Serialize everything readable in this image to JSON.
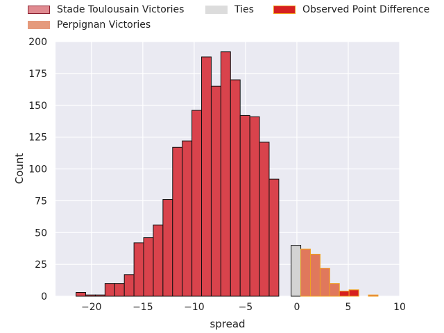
{
  "chart_data": {
    "type": "bar",
    "title": "",
    "xlabel": "spread",
    "ylabel": "Count",
    "xlim": [
      -23.5,
      10
    ],
    "ylim": [
      0,
      200
    ],
    "xticks": [
      -20,
      -15,
      -10,
      -5,
      0,
      5,
      10
    ],
    "xtick_labels": [
      "−20",
      "−15",
      "−10",
      "−5",
      "0",
      "5",
      "10"
    ],
    "yticks": [
      0,
      25,
      50,
      75,
      100,
      125,
      150,
      175,
      200
    ],
    "ytick_labels": [
      "0",
      "25",
      "50",
      "75",
      "100",
      "125",
      "150",
      "175",
      "200"
    ],
    "grid": true,
    "legend_placement": "top",
    "colors": {
      "background": "#eaeaf2",
      "grid": "#ffffff",
      "toulousain": "#d9434c",
      "perpignan": "#e0785c",
      "ties": "#d3d3d3",
      "observed_fill": "#d62020",
      "observed_edge": "#f0a020"
    },
    "legend": [
      {
        "label": "Stade Toulousain Victories",
        "key": "toulousain"
      },
      {
        "label": "Ties",
        "key": "ties"
      },
      {
        "label": "Observed Point Difference",
        "key": "observed"
      },
      {
        "label": "Perpignan Victories",
        "key": "perpignan"
      }
    ],
    "bin_width": 0.94,
    "series": [
      {
        "name": "Stade Toulousain Victories",
        "key": "toulousain",
        "bins": [
          {
            "x": -21.5,
            "count": 3
          },
          {
            "x": -20.56,
            "count": 1
          },
          {
            "x": -19.62,
            "count": 1
          },
          {
            "x": -18.68,
            "count": 10
          },
          {
            "x": -17.74,
            "count": 10
          },
          {
            "x": -16.8,
            "count": 17
          },
          {
            "x": -15.86,
            "count": 42
          },
          {
            "x": -14.92,
            "count": 46
          },
          {
            "x": -13.98,
            "count": 56
          },
          {
            "x": -13.04,
            "count": 76
          },
          {
            "x": -12.1,
            "count": 117
          },
          {
            "x": -11.16,
            "count": 122
          },
          {
            "x": -10.22,
            "count": 146
          },
          {
            "x": -9.28,
            "count": 188
          },
          {
            "x": -8.34,
            "count": 165
          },
          {
            "x": -7.4,
            "count": 192
          },
          {
            "x": -6.46,
            "count": 170
          },
          {
            "x": -5.52,
            "count": 142
          },
          {
            "x": -4.58,
            "count": 141
          },
          {
            "x": -3.64,
            "count": 121
          },
          {
            "x": -2.7,
            "count": 92
          }
        ]
      },
      {
        "name": "Ties",
        "key": "ties",
        "bins": [
          {
            "x": -0.56,
            "count": 40
          }
        ]
      },
      {
        "name": "Perpignan Victories",
        "key": "perpignan",
        "bins": [
          {
            "x": 0.38,
            "count": 37
          },
          {
            "x": 1.32,
            "count": 33
          },
          {
            "x": 2.26,
            "count": 22
          },
          {
            "x": 3.2,
            "count": 10
          },
          {
            "x": 4.14,
            "count": 4
          },
          {
            "x": 5.08,
            "count": 5
          },
          {
            "x": 6.96,
            "count": 1
          }
        ]
      },
      {
        "name": "Observed Point Difference",
        "key": "observed",
        "bins": [
          {
            "x": 4.14,
            "count": 4
          },
          {
            "x": 5.08,
            "count": 5
          }
        ]
      }
    ]
  }
}
